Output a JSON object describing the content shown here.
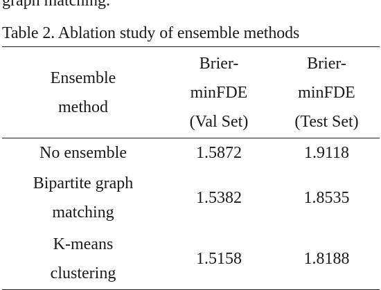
{
  "preceding_text": "graph matching.",
  "caption": "Table 2. Ablation study of ensemble methods",
  "table": {
    "headers": [
      [
        "Ensemble",
        "method"
      ],
      [
        "Brier-",
        "minFDE",
        "(Val Set)"
      ],
      [
        "Brier-",
        "minFDE",
        "(Test Set)"
      ]
    ],
    "rows": [
      {
        "method": [
          "No ensemble"
        ],
        "val": "1.5872",
        "test": "1.9118"
      },
      {
        "method": [
          "Bipartite graph",
          "matching"
        ],
        "val": "1.5382",
        "test": "1.8535"
      },
      {
        "method": [
          "K-means",
          "clustering"
        ],
        "val": "1.5158",
        "test": "1.8188"
      }
    ]
  }
}
